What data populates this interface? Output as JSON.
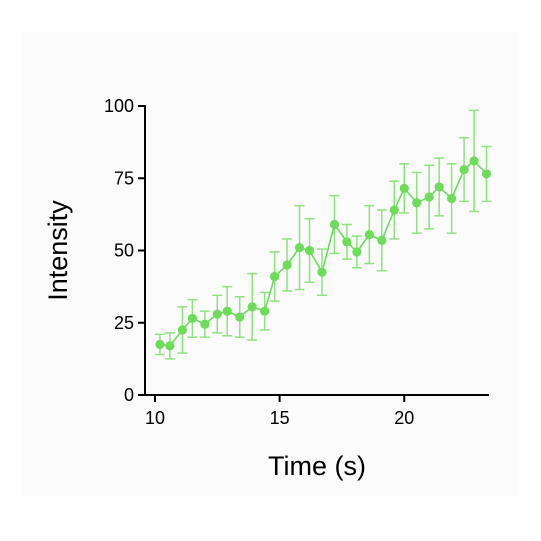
{
  "chart_data": {
    "type": "scatter",
    "title": "",
    "xlabel": "Time (s)",
    "ylabel": "Intensity",
    "xlim": [
      9.6,
      23.4
    ],
    "ylim": [
      0,
      100
    ],
    "xticks": [
      10,
      15,
      20
    ],
    "yticks": [
      0,
      25,
      50,
      75,
      100
    ],
    "grid": false,
    "legend": "none",
    "series_color": "#6cdc5a",
    "error_bar_color": "#8fe27f",
    "x": [
      10.2,
      10.6,
      11.1,
      11.5,
      12.0,
      12.5,
      12.9,
      13.4,
      13.9,
      14.4,
      14.8,
      15.3,
      15.8,
      16.2,
      16.7,
      17.2,
      17.7,
      18.1,
      18.6,
      19.1,
      19.6,
      20.0,
      20.5,
      21.0,
      21.4,
      21.9,
      22.4,
      22.8,
      23.3
    ],
    "y": [
      17.5,
      17,
      22.5,
      26.5,
      24.5,
      28,
      29,
      27,
      30.5,
      29,
      41,
      45,
      51,
      50,
      42.5,
      59,
      53,
      49.5,
      55.5,
      53.5,
      64,
      71.5,
      66.5,
      68.5,
      72,
      68,
      78,
      81,
      76.5
    ],
    "error": [
      3.5,
      4.5,
      8,
      6.5,
      4.5,
      6.5,
      8.5,
      7,
      11.5,
      6.5,
      8.5,
      9,
      14.5,
      11,
      8,
      10,
      6,
      5.5,
      10,
      10.5,
      10,
      8.5,
      10.5,
      11,
      10,
      12,
      11,
      17.5,
      9.5
    ]
  }
}
